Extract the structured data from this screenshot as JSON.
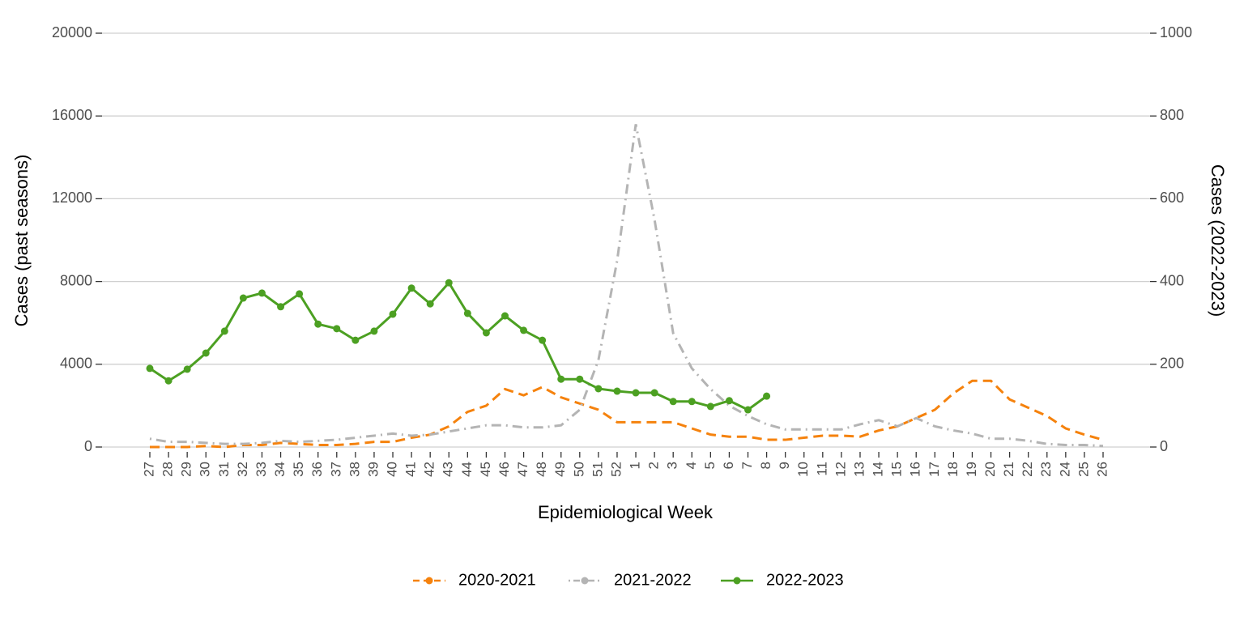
{
  "chart_data": {
    "type": "line",
    "categories": [
      "27",
      "28",
      "29",
      "30",
      "31",
      "32",
      "33",
      "34",
      "35",
      "36",
      "37",
      "38",
      "39",
      "40",
      "41",
      "42",
      "43",
      "44",
      "45",
      "46",
      "47",
      "48",
      "49",
      "50",
      "51",
      "52",
      "1",
      "2",
      "3",
      "4",
      "5",
      "6",
      "7",
      "8",
      "9",
      "10",
      "11",
      "12",
      "13",
      "14",
      "15",
      "16",
      "17",
      "18",
      "19",
      "20",
      "21",
      "22",
      "23",
      "24",
      "25",
      "26"
    ],
    "x_label": "Epidemiological Week",
    "y_label": "Cases (past seasons)",
    "y2_label": "Cases (2022-2023)",
    "ylim": [
      0,
      20000
    ],
    "yticks": [
      0,
      4000,
      8000,
      12000,
      16000,
      20000
    ],
    "y2lim": [
      0,
      1000
    ],
    "y2ticks": [
      0,
      200,
      400,
      600,
      800,
      1000
    ],
    "grid": true,
    "legend": "bottom",
    "series": [
      {
        "name": "2020-2021",
        "color": "#f5820d",
        "line_style": "dashed",
        "markers": false,
        "values": [
          0,
          0,
          0,
          50,
          0,
          100,
          100,
          200,
          150,
          100,
          100,
          150,
          250,
          250,
          450,
          600,
          1000,
          1700,
          2000,
          2800,
          2500,
          2900,
          2400,
          2100,
          1800,
          1200,
          1200,
          1200,
          1200,
          900,
          600,
          500,
          500,
          350,
          350,
          450,
          550,
          550,
          500,
          800,
          1000,
          1400,
          1800,
          2600,
          3200,
          3200,
          2300,
          1900,
          1500,
          900,
          600,
          350
        ]
      },
      {
        "name": "2021-2022",
        "color": "#b4b4b4",
        "line_style": "dotdash",
        "markers": false,
        "values": [
          400,
          250,
          250,
          200,
          150,
          150,
          200,
          300,
          250,
          300,
          350,
          450,
          550,
          650,
          550,
          600,
          750,
          900,
          1050,
          1050,
          950,
          950,
          1050,
          1800,
          4200,
          9000,
          15600,
          11000,
          5500,
          3800,
          2800,
          2000,
          1500,
          1100,
          850,
          850,
          850,
          850,
          1100,
          1300,
          1000,
          1400,
          1000,
          800,
          650,
          400,
          400,
          300,
          150,
          100,
          100,
          50
        ]
      },
      {
        "name": "2022-2023",
        "color": "#4ca022",
        "line_style": "solid",
        "markers": true,
        "axis": "y2",
        "values": [
          190,
          160,
          188,
          227,
          280,
          360,
          372,
          339,
          370,
          297,
          286,
          258,
          280,
          321,
          384,
          346,
          397,
          323,
          276,
          317,
          282,
          258,
          164,
          164,
          141,
          135,
          131,
          131,
          110,
          110,
          98,
          112,
          90,
          123,
          null,
          null,
          null,
          null,
          null,
          null,
          null,
          null,
          null,
          null,
          null,
          null,
          null,
          null,
          null,
          null,
          null,
          null
        ]
      }
    ]
  }
}
